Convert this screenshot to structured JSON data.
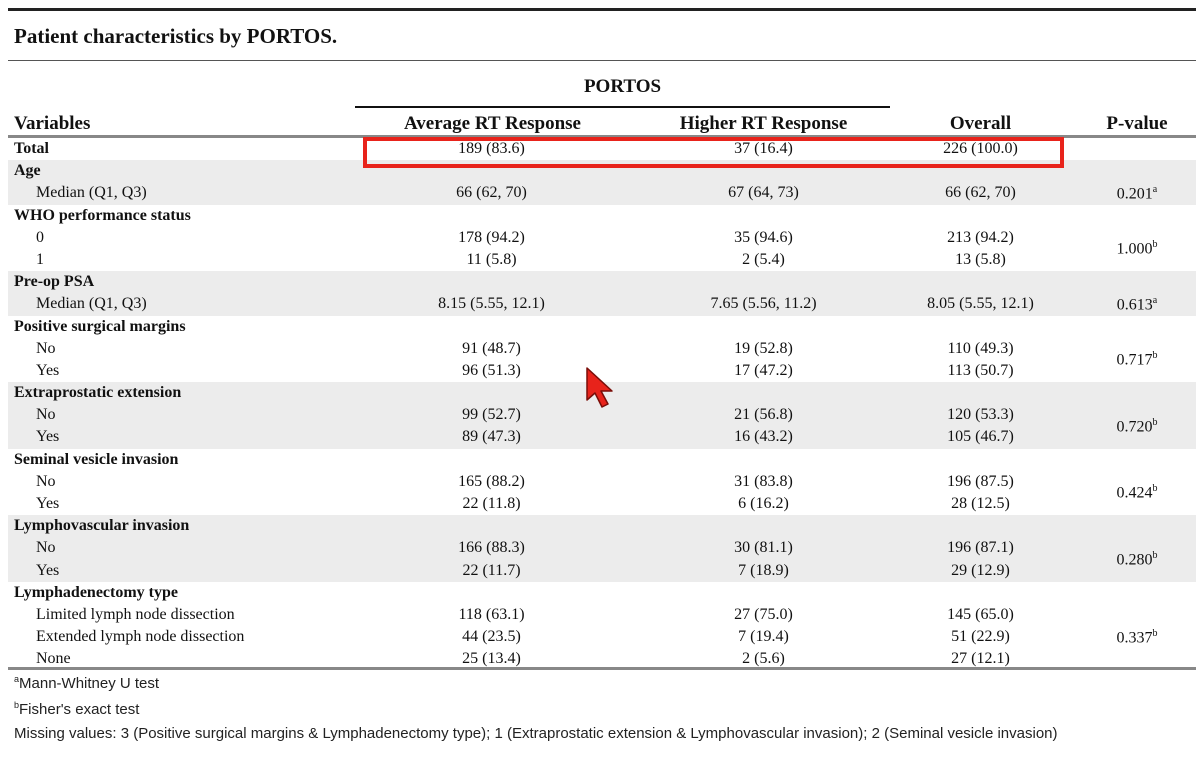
{
  "title": "Patient characteristics by PORTOS.",
  "group_header": "PORTOS",
  "columns": {
    "variables": "Variables",
    "average": "Average RT Response",
    "higher": "Higher RT Response",
    "overall": "Overall",
    "pvalue": "P-value"
  },
  "rows": [
    {
      "label": "Total",
      "bold": true,
      "avg": "189 (83.6)",
      "high": "37 (16.4)",
      "overall": "226 (100.0)"
    },
    {
      "label": "Age",
      "bold": true
    },
    {
      "label": "Median (Q1, Q3)",
      "avg": "66 (62, 70)",
      "high": "67 (64, 73)",
      "overall": "66 (62, 70)"
    },
    {
      "label": "WHO performance status",
      "bold": true
    },
    {
      "label": "0",
      "avg": "178 (94.2)",
      "high": "35 (94.6)",
      "overall": "213 (94.2)"
    },
    {
      "label": "1",
      "avg": "11 (5.8)",
      "high": "2 (5.4)",
      "overall": "13 (5.8)"
    },
    {
      "label": "Pre-op PSA",
      "bold": true
    },
    {
      "label": "Median (Q1, Q3)",
      "avg": "8.15 (5.55, 12.1)",
      "high": "7.65 (5.56, 11.2)",
      "overall": "8.05 (5.55, 12.1)"
    },
    {
      "label": "Positive surgical margins",
      "bold": true
    },
    {
      "label": "No",
      "avg": "91 (48.7)",
      "high": "19 (52.8)",
      "overall": "110 (49.3)"
    },
    {
      "label": "Yes",
      "avg": "96 (51.3)",
      "high": "17 (47.2)",
      "overall": "113 (50.7)"
    },
    {
      "label": "Extraprostatic extension",
      "bold": true
    },
    {
      "label": "No",
      "avg": "99 (52.7)",
      "high": "21 (56.8)",
      "overall": "120 (53.3)"
    },
    {
      "label": "Yes",
      "avg": "89 (47.3)",
      "high": "16 (43.2)",
      "overall": "105 (46.7)"
    },
    {
      "label": "Seminal vesicle invasion",
      "bold": true
    },
    {
      "label": "No",
      "avg": "165 (88.2)",
      "high": "31 (83.8)",
      "overall": "196 (87.5)"
    },
    {
      "label": "Yes",
      "avg": "22 (11.8)",
      "high": "6 (16.2)",
      "overall": "28 (12.5)"
    },
    {
      "label": "Lymphovascular invasion",
      "bold": true
    },
    {
      "label": "No",
      "avg": "166 (88.3)",
      "high": "30 (81.1)",
      "overall": "196 (87.1)"
    },
    {
      "label": "Yes",
      "avg": "22 (11.7)",
      "high": "7 (18.9)",
      "overall": "29 (12.9)"
    },
    {
      "label": "Lymphadenectomy type",
      "bold": true
    },
    {
      "label": "Limited lymph node dissection",
      "avg": "118 (63.1)",
      "high": "27 (75.0)",
      "overall": "145 (65.0)"
    },
    {
      "label": "Extended lymph node dissection",
      "avg": "44 (23.5)",
      "high": "7 (19.4)",
      "overall": "51 (22.9)"
    },
    {
      "label": "None",
      "avg": "25 (13.4)",
      "high": "2 (5.6)",
      "overall": "27 (12.1)"
    }
  ],
  "pvalues": [
    {
      "value": "0.201",
      "sup": "a"
    },
    {
      "value": "1.000",
      "sup": "b"
    },
    {
      "value": "0.613",
      "sup": "a"
    },
    {
      "value": "0.717",
      "sup": "b"
    },
    {
      "value": "0.720",
      "sup": "b"
    },
    {
      "value": "0.424",
      "sup": "b"
    },
    {
      "value": "0.280",
      "sup": "b"
    },
    {
      "value": "0.337",
      "sup": "b"
    }
  ],
  "footnotes": {
    "a_mark": "a",
    "a_text": "Mann-Whitney U test",
    "b_mark": "b",
    "b_text": "Fisher's exact test",
    "missing": "Missing values: 3 (Positive surgical margins & Lymphadenectomy type); 1 (Extraprostatic extension & Lymphovascular invasion); 2 (Seminal vesicle invasion)"
  },
  "colors": {
    "highlight": "#e8231b",
    "cursor": "#e8231b",
    "shading": "#ececec"
  },
  "icons": {
    "cursor": "mouse-pointer-icon"
  }
}
